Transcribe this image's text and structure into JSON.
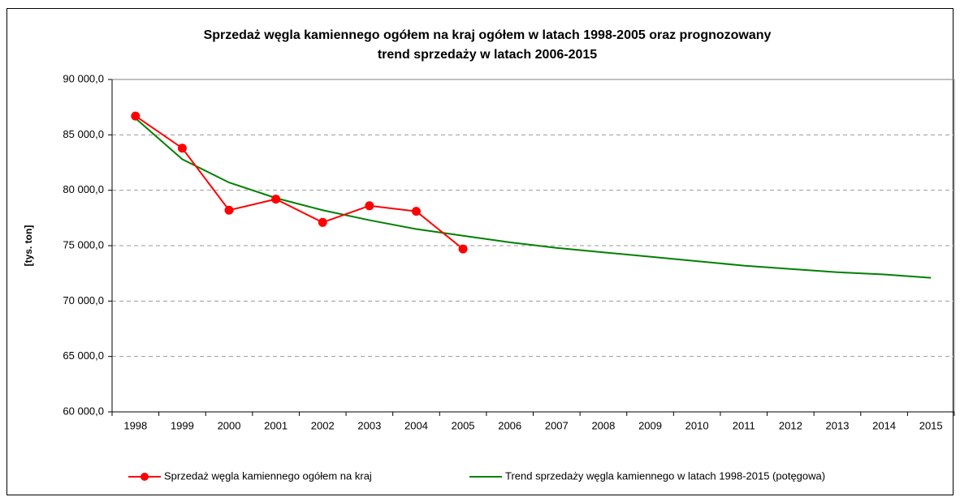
{
  "chart_data": {
    "type": "line",
    "title": [
      "Sprzedaż węgla kamiennego ogółem na kraj ogółem w latach 1998-2005 oraz prognozowany",
      "trend sprzedaży w latach 2006-2015"
    ],
    "y_label": "[tys. ton]",
    "categories": [
      "1998",
      "1999",
      "2000",
      "2001",
      "2002",
      "2003",
      "2004",
      "2005",
      "2006",
      "2007",
      "2008",
      "2009",
      "2010",
      "2011",
      "2012",
      "2013",
      "2014",
      "2015"
    ],
    "series": [
      {
        "name": "Sprzedaż węgla kamiennego ogółem na kraj",
        "color": "#ff0000",
        "markers": true,
        "values": [
          86700,
          83800,
          78200,
          79200,
          77100,
          78600,
          78100,
          74700,
          null,
          null,
          null,
          null,
          null,
          null,
          null,
          null,
          null,
          null
        ]
      },
      {
        "name": "Trend sprzedaży węgla kamiennego w latach 1998-2015 (potęgowa)",
        "color": "#008000",
        "markers": false,
        "values": [
          86500,
          82800,
          80700,
          79300,
          78200,
          77300,
          76500,
          75900,
          75300,
          74800,
          74400,
          74000,
          73600,
          73200,
          72900,
          72600,
          72400,
          72100
        ]
      }
    ],
    "ylim": [
      60000,
      90000
    ],
    "yticks": [
      {
        "value": 60000,
        "label": "60 000,0"
      },
      {
        "value": 65000,
        "label": "65 000,0"
      },
      {
        "value": 70000,
        "label": "70 000,0"
      },
      {
        "value": 75000,
        "label": "75 000,0"
      },
      {
        "value": 80000,
        "label": "80 000,0"
      },
      {
        "value": 85000,
        "label": "85 000,0"
      },
      {
        "value": 90000,
        "label": "90 000,0"
      }
    ],
    "grid": true,
    "legend": "bottom"
  }
}
